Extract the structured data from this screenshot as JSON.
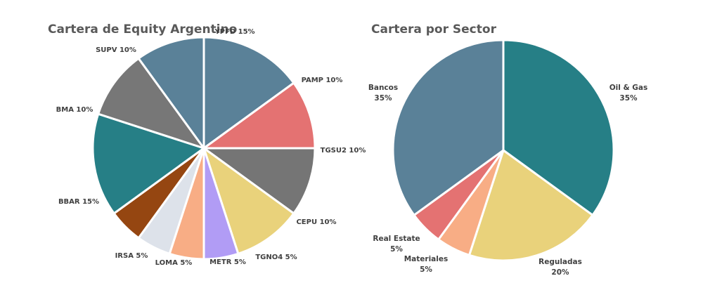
{
  "chart_data": [
    {
      "type": "pie",
      "title": "Cartera de Equity Argentino",
      "slices": [
        {
          "name": "YPFD",
          "value": 15,
          "label": "YPFD 15%",
          "color": "#5A8198"
        },
        {
          "name": "PAMP",
          "value": 10,
          "label": "PAMP 10%",
          "color": "#E47272"
        },
        {
          "name": "TGSU2",
          "value": 10,
          "label": "TGSU2 10%",
          "color": "#757575"
        },
        {
          "name": "CEPU",
          "value": 10,
          "label": "CEPU 10%",
          "color": "#E9D27B"
        },
        {
          "name": "TGNO4",
          "value": 5,
          "label": "TGNO4 5%",
          "color": "#B19CF5"
        },
        {
          "name": "METR",
          "value": 5,
          "label": "METR 5%",
          "color": "#F8AD85"
        },
        {
          "name": "LOMA",
          "value": 5,
          "label": "LOMA 5%",
          "color": "#DDE2EA"
        },
        {
          "name": "IRSA",
          "value": 5,
          "label": "IRSA 5%",
          "color": "#954611"
        },
        {
          "name": "BBAR",
          "value": 15,
          "label": "BBAR 15%",
          "color": "#267F86"
        },
        {
          "name": "BMA",
          "value": 10,
          "label": "BMA 10%",
          "color": "#777777"
        },
        {
          "name": "SUPV",
          "value": 10,
          "label": "SUPV 10%",
          "color": "#5A8198"
        }
      ]
    },
    {
      "type": "pie",
      "title": "Cartera por Sector",
      "slices": [
        {
          "name": "Oil & Gas",
          "value": 35,
          "label": [
            "Oil & Gas",
            "35%"
          ],
          "color": "#267F86"
        },
        {
          "name": "Reguladas",
          "value": 20,
          "label": [
            "Reguladas",
            "20%"
          ],
          "color": "#E9D27B"
        },
        {
          "name": "Materiales",
          "value": 5,
          "label": [
            "Materiales",
            "5%"
          ],
          "color": "#F8AD85"
        },
        {
          "name": "Real Estate",
          "value": 5,
          "label": [
            "Real Estate",
            "5%"
          ],
          "color": "#E47272"
        },
        {
          "name": "Bancos",
          "value": 35,
          "label": [
            "Bancos",
            "35%"
          ],
          "color": "#5A8198"
        }
      ]
    }
  ]
}
